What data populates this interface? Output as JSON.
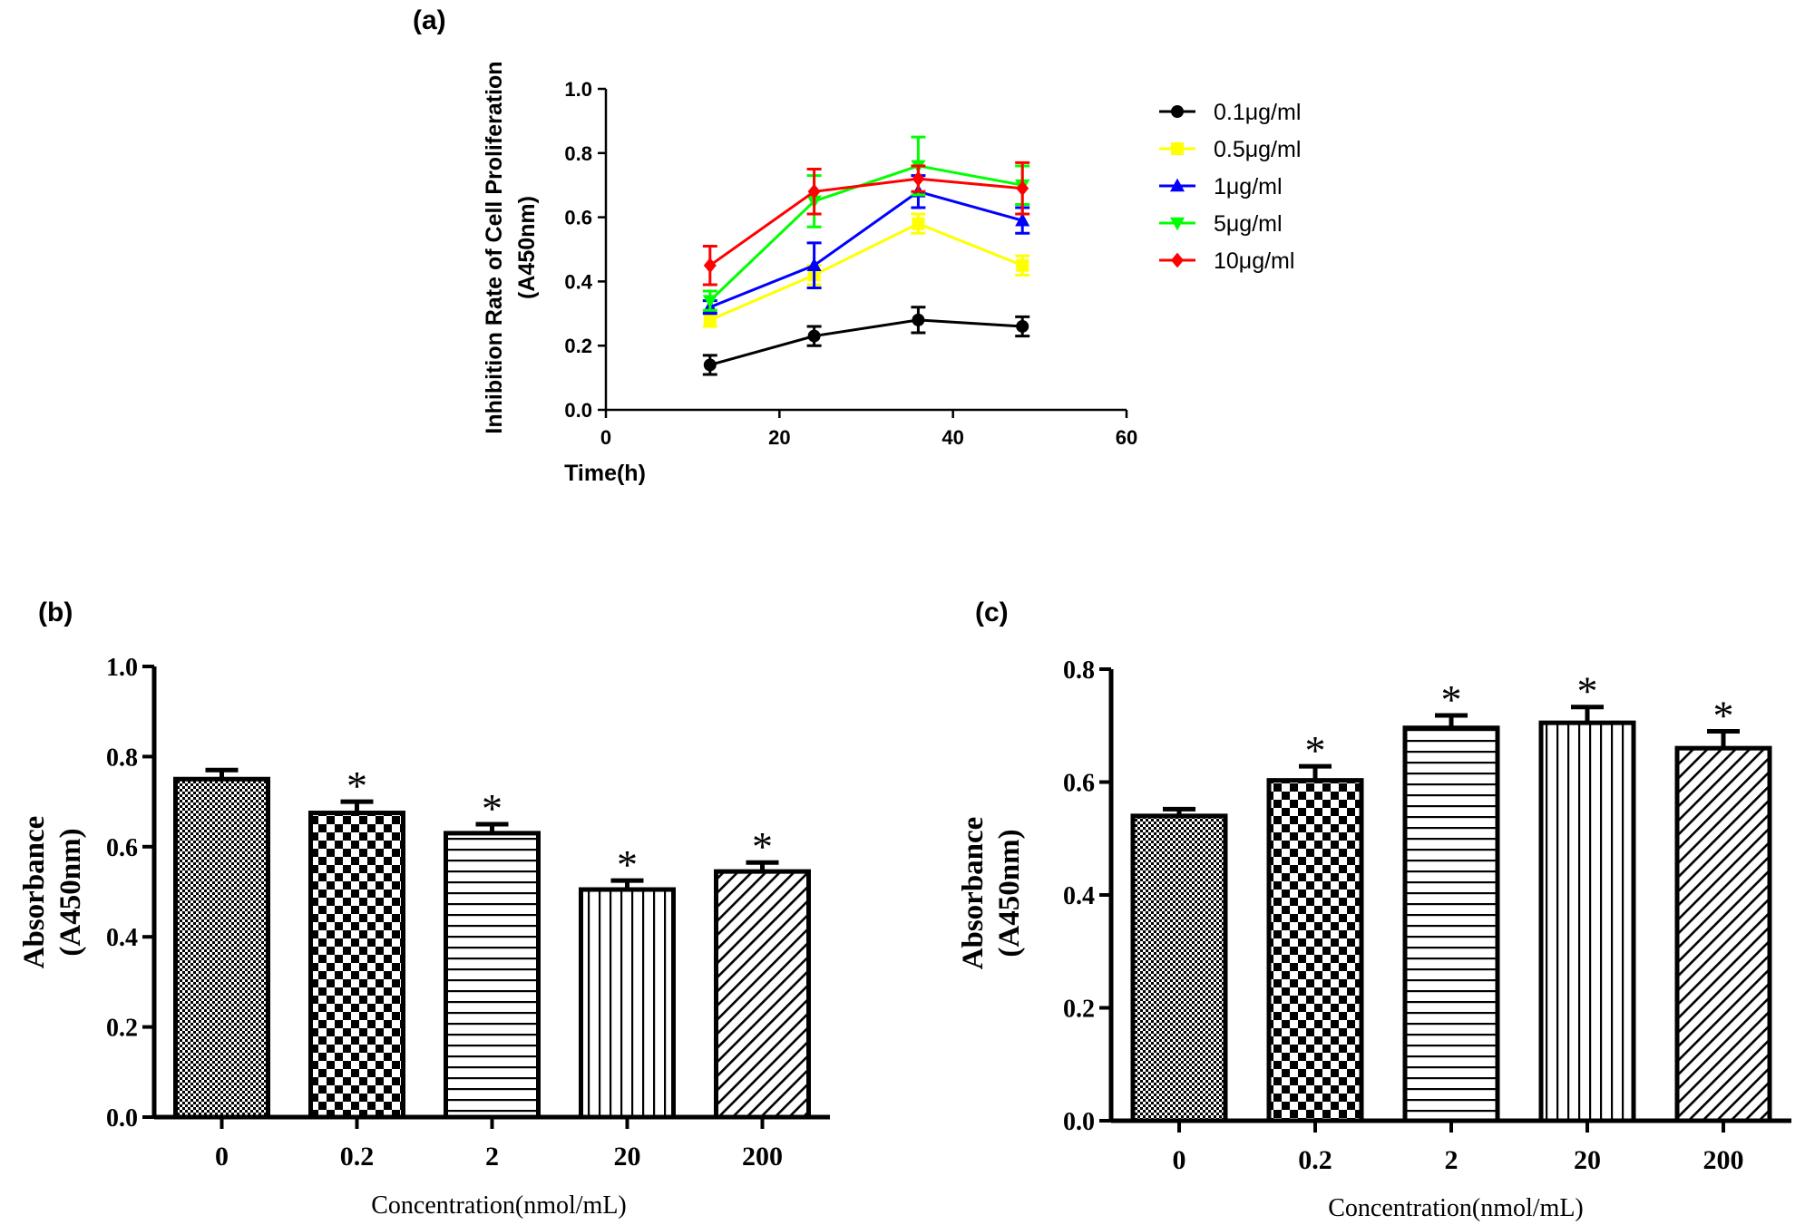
{
  "chart_data": [
    {
      "id": "a",
      "type": "line",
      "panel_label": "(a)",
      "title": "",
      "xlabel": "Time(h)",
      "ylabel_lines": [
        "Inhibition Rate of Cell Proliferation",
        "(A450nm)"
      ],
      "xlim": [
        0,
        60
      ],
      "ylim": [
        0.0,
        1.0
      ],
      "xticks": [
        0,
        20,
        40,
        60
      ],
      "yticks": [
        "0.0",
        "0.2",
        "0.4",
        "0.6",
        "0.8",
        "1.0"
      ],
      "x": [
        12,
        24,
        36,
        48
      ],
      "legend_position": "right",
      "series": [
        {
          "name": "0.1μg/ml",
          "color": "#000000",
          "marker": "circle",
          "values": [
            0.14,
            0.23,
            0.28,
            0.26
          ],
          "errors": [
            0.03,
            0.03,
            0.04,
            0.03
          ]
        },
        {
          "name": "0.5μg/ml",
          "color": "#ffff00",
          "marker": "square",
          "values": [
            0.28,
            0.42,
            0.58,
            0.45
          ],
          "errors": [
            0.02,
            0.03,
            0.03,
            0.03
          ]
        },
        {
          "name": "1μg/ml",
          "color": "#0000ff",
          "marker": "triangle-up",
          "values": [
            0.32,
            0.45,
            0.68,
            0.59
          ],
          "errors": [
            0.02,
            0.07,
            0.05,
            0.04
          ]
        },
        {
          "name": "5μg/ml",
          "color": "#00ff00",
          "marker": "triangle-down",
          "values": [
            0.34,
            0.65,
            0.76,
            0.7
          ],
          "errors": [
            0.03,
            0.08,
            0.09,
            0.06
          ]
        },
        {
          "name": "10μg/ml",
          "color": "#ff0000",
          "marker": "diamond",
          "values": [
            0.45,
            0.68,
            0.72,
            0.69
          ],
          "errors": [
            0.06,
            0.07,
            0.04,
            0.08
          ]
        }
      ]
    },
    {
      "id": "b",
      "type": "bar",
      "panel_label": "(b)",
      "title": "",
      "xlabel": "Concentration(nmol/mL)",
      "ylabel_lines": [
        "Absorbance",
        "(A450nm)"
      ],
      "ylim": [
        0.0,
        1.0
      ],
      "yticks": [
        "0.0",
        "0.2",
        "0.4",
        "0.6",
        "0.8",
        "1.0"
      ],
      "categories": [
        "0",
        "0.2",
        "2",
        "20",
        "200"
      ],
      "values": [
        0.75,
        0.675,
        0.63,
        0.505,
        0.545
      ],
      "errors": [
        0.02,
        0.025,
        0.02,
        0.02,
        0.02
      ],
      "significance": [
        "",
        "*",
        "*",
        "*",
        "*"
      ],
      "patterns": [
        "fine-check",
        "check",
        "horizontal",
        "vertical",
        "diagonal"
      ]
    },
    {
      "id": "c",
      "type": "bar",
      "panel_label": "(c)",
      "title": "",
      "xlabel": "Concentration(nmol/mL)",
      "ylabel_lines": [
        "Absorbance",
        "(A450nm)"
      ],
      "ylim": [
        0.0,
        0.8
      ],
      "yticks": [
        "0.0",
        "0.2",
        "0.4",
        "0.6",
        "0.8"
      ],
      "categories": [
        "0",
        "0.2",
        "2",
        "20",
        "200"
      ],
      "values": [
        0.54,
        0.603,
        0.696,
        0.705,
        0.66
      ],
      "errors": [
        0.012,
        0.025,
        0.022,
        0.028,
        0.03
      ],
      "significance": [
        "",
        "*",
        "*",
        "*",
        "*"
      ],
      "patterns": [
        "fine-check",
        "check",
        "horizontal",
        "vertical",
        "diagonal"
      ]
    }
  ]
}
